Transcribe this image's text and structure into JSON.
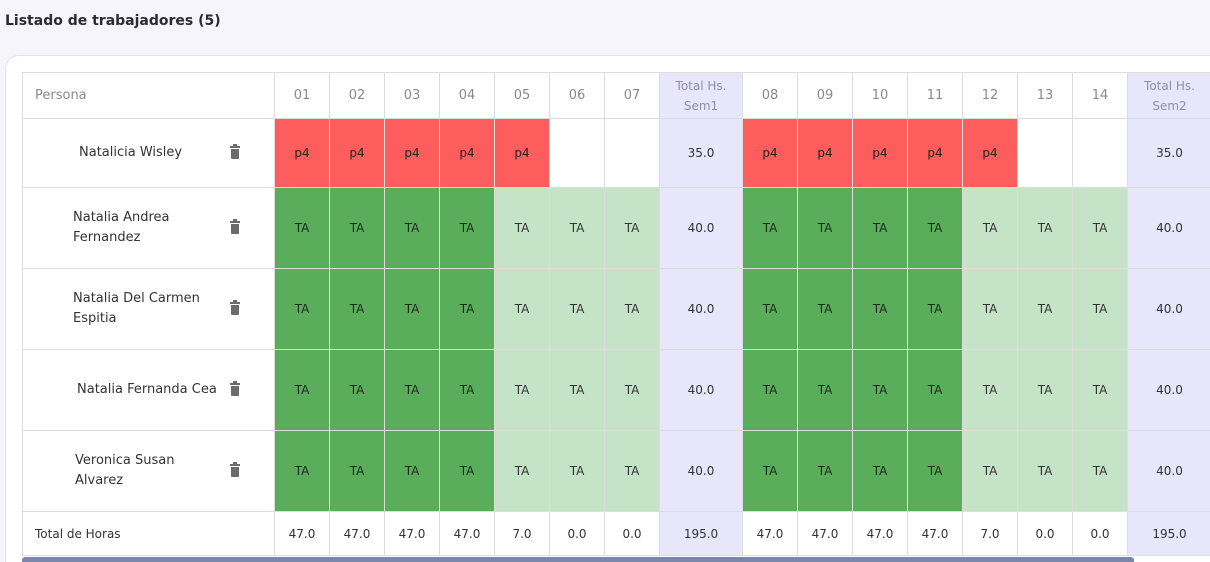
{
  "page": {
    "title": "Listado de trabajadores (5)"
  },
  "table": {
    "persona_header": "Persona",
    "columns": [
      {
        "label": "01",
        "type": "day"
      },
      {
        "label": "02",
        "type": "day"
      },
      {
        "label": "03",
        "type": "day"
      },
      {
        "label": "04",
        "type": "day"
      },
      {
        "label": "05",
        "type": "day"
      },
      {
        "label": "06",
        "type": "day"
      },
      {
        "label": "07",
        "type": "day"
      },
      {
        "label": "Total Hs. Sem1",
        "type": "total"
      },
      {
        "label": "08",
        "type": "day"
      },
      {
        "label": "09",
        "type": "day"
      },
      {
        "label": "10",
        "type": "day"
      },
      {
        "label": "11",
        "type": "day"
      },
      {
        "label": "12",
        "type": "day"
      },
      {
        "label": "13",
        "type": "day"
      },
      {
        "label": "14",
        "type": "day"
      },
      {
        "label": "Total Hs. Sem2",
        "type": "total"
      }
    ],
    "rows": [
      {
        "name": "Natalicia Wisley",
        "name_offset": 56,
        "height": 69,
        "cells": [
          {
            "v": "p4",
            "c": "red"
          },
          {
            "v": "p4",
            "c": "red"
          },
          {
            "v": "p4",
            "c": "red"
          },
          {
            "v": "p4",
            "c": "red"
          },
          {
            "v": "p4",
            "c": "red"
          },
          {
            "v": "",
            "c": "empty"
          },
          {
            "v": "",
            "c": "empty"
          },
          {
            "v": "35.0",
            "c": "total"
          },
          {
            "v": "p4",
            "c": "red"
          },
          {
            "v": "p4",
            "c": "red"
          },
          {
            "v": "p4",
            "c": "red"
          },
          {
            "v": "p4",
            "c": "red"
          },
          {
            "v": "p4",
            "c": "red"
          },
          {
            "v": "",
            "c": "empty"
          },
          {
            "v": "",
            "c": "empty"
          },
          {
            "v": "35.0",
            "c": "total"
          }
        ]
      },
      {
        "name": "Natalia Andrea Fernandez",
        "name_offset": 50,
        "height": 81,
        "cells": [
          {
            "v": "TA",
            "c": "green"
          },
          {
            "v": "TA",
            "c": "green"
          },
          {
            "v": "TA",
            "c": "green"
          },
          {
            "v": "TA",
            "c": "green"
          },
          {
            "v": "TA",
            "c": "lgreen"
          },
          {
            "v": "TA",
            "c": "lgreen"
          },
          {
            "v": "TA",
            "c": "lgreen"
          },
          {
            "v": "40.0",
            "c": "total"
          },
          {
            "v": "TA",
            "c": "green"
          },
          {
            "v": "TA",
            "c": "green"
          },
          {
            "v": "TA",
            "c": "green"
          },
          {
            "v": "TA",
            "c": "green"
          },
          {
            "v": "TA",
            "c": "lgreen"
          },
          {
            "v": "TA",
            "c": "lgreen"
          },
          {
            "v": "TA",
            "c": "lgreen"
          },
          {
            "v": "40.0",
            "c": "total"
          }
        ]
      },
      {
        "name": "Natalia Del Carmen Espitia",
        "name_offset": 50,
        "height": 81,
        "cells": [
          {
            "v": "TA",
            "c": "green"
          },
          {
            "v": "TA",
            "c": "green"
          },
          {
            "v": "TA",
            "c": "green"
          },
          {
            "v": "TA",
            "c": "green"
          },
          {
            "v": "TA",
            "c": "lgreen"
          },
          {
            "v": "TA",
            "c": "lgreen"
          },
          {
            "v": "TA",
            "c": "lgreen"
          },
          {
            "v": "40.0",
            "c": "total"
          },
          {
            "v": "TA",
            "c": "green"
          },
          {
            "v": "TA",
            "c": "green"
          },
          {
            "v": "TA",
            "c": "green"
          },
          {
            "v": "TA",
            "c": "green"
          },
          {
            "v": "TA",
            "c": "lgreen"
          },
          {
            "v": "TA",
            "c": "lgreen"
          },
          {
            "v": "TA",
            "c": "lgreen"
          },
          {
            "v": "40.0",
            "c": "total"
          }
        ]
      },
      {
        "name": "Natalia Fernanda Cea",
        "name_offset": 54,
        "height": 81,
        "cells": [
          {
            "v": "TA",
            "c": "green"
          },
          {
            "v": "TA",
            "c": "green"
          },
          {
            "v": "TA",
            "c": "green"
          },
          {
            "v": "TA",
            "c": "green"
          },
          {
            "v": "TA",
            "c": "lgreen"
          },
          {
            "v": "TA",
            "c": "lgreen"
          },
          {
            "v": "TA",
            "c": "lgreen"
          },
          {
            "v": "40.0",
            "c": "total"
          },
          {
            "v": "TA",
            "c": "green"
          },
          {
            "v": "TA",
            "c": "green"
          },
          {
            "v": "TA",
            "c": "green"
          },
          {
            "v": "TA",
            "c": "green"
          },
          {
            "v": "TA",
            "c": "lgreen"
          },
          {
            "v": "TA",
            "c": "lgreen"
          },
          {
            "v": "TA",
            "c": "lgreen"
          },
          {
            "v": "40.0",
            "c": "total"
          }
        ]
      },
      {
        "name": "Veronica Susan Alvarez",
        "name_offset": 52,
        "height": 81,
        "cells": [
          {
            "v": "TA",
            "c": "green"
          },
          {
            "v": "TA",
            "c": "green"
          },
          {
            "v": "TA",
            "c": "green"
          },
          {
            "v": "TA",
            "c": "green"
          },
          {
            "v": "TA",
            "c": "lgreen"
          },
          {
            "v": "TA",
            "c": "lgreen"
          },
          {
            "v": "TA",
            "c": "lgreen"
          },
          {
            "v": "40.0",
            "c": "total"
          },
          {
            "v": "TA",
            "c": "green"
          },
          {
            "v": "TA",
            "c": "green"
          },
          {
            "v": "TA",
            "c": "green"
          },
          {
            "v": "TA",
            "c": "green"
          },
          {
            "v": "TA",
            "c": "lgreen"
          },
          {
            "v": "TA",
            "c": "lgreen"
          },
          {
            "v": "TA",
            "c": "lgreen"
          },
          {
            "v": "40.0",
            "c": "total"
          }
        ]
      }
    ],
    "footer": {
      "label": "Total de Horas",
      "values": [
        "47.0",
        "47.0",
        "47.0",
        "47.0",
        "7.0",
        "0.0",
        "0.0",
        "195.0",
        "47.0",
        "47.0",
        "47.0",
        "47.0",
        "7.0",
        "0.0",
        "0.0",
        "195.0"
      ]
    },
    "icons": {
      "row_action": "trash-icon"
    }
  }
}
